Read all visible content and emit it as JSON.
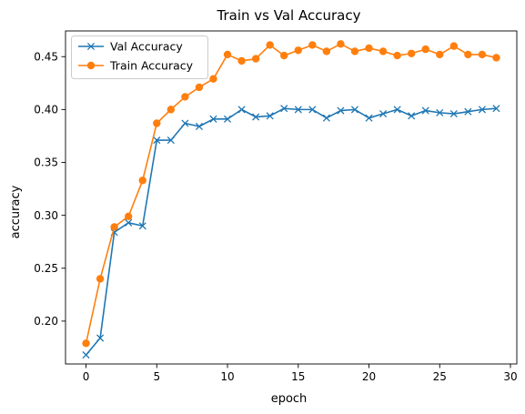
{
  "chart_data": {
    "type": "line",
    "title": "Train vs Val Accuracy",
    "xlabel": "epoch",
    "ylabel": "accuracy",
    "xlim": [
      -1.45,
      30.45
    ],
    "ylim": [
      0.1595,
      0.4743
    ],
    "x_ticks": [
      0,
      5,
      10,
      15,
      20,
      25,
      30
    ],
    "x_tick_labels": [
      "0",
      "5",
      "10",
      "15",
      "20",
      "25",
      "30"
    ],
    "y_ticks": [
      0.2,
      0.25,
      0.3,
      0.35,
      0.4,
      0.45
    ],
    "y_tick_labels": [
      "0.20",
      "0.25",
      "0.30",
      "0.35",
      "0.40",
      "0.45"
    ],
    "grid": false,
    "legend_position": "top-left",
    "x": [
      0,
      1,
      2,
      3,
      4,
      5,
      6,
      7,
      8,
      9,
      10,
      11,
      12,
      13,
      14,
      15,
      16,
      17,
      18,
      19,
      20,
      21,
      22,
      23,
      24,
      25,
      26,
      27,
      28,
      29
    ],
    "series": [
      {
        "name": "Val Accuracy",
        "color": "#1f77b4",
        "marker": "x",
        "values": [
          0.168,
          0.184,
          0.284,
          0.293,
          0.29,
          0.371,
          0.371,
          0.387,
          0.384,
          0.391,
          0.391,
          0.4,
          0.393,
          0.394,
          0.401,
          0.4,
          0.4,
          0.392,
          0.399,
          0.4,
          0.392,
          0.396,
          0.4,
          0.394,
          0.399,
          0.397,
          0.396,
          0.398,
          0.4,
          0.401
        ]
      },
      {
        "name": "Train Accuracy",
        "color": "#ff7f0e",
        "marker": "o",
        "values": [
          0.179,
          0.24,
          0.289,
          0.299,
          0.333,
          0.387,
          0.4,
          0.412,
          0.421,
          0.429,
          0.452,
          0.446,
          0.448,
          0.461,
          0.451,
          0.456,
          0.461,
          0.455,
          0.462,
          0.455,
          0.458,
          0.455,
          0.451,
          0.453,
          0.457,
          0.452,
          0.46,
          0.452,
          0.452,
          0.449
        ]
      }
    ]
  }
}
